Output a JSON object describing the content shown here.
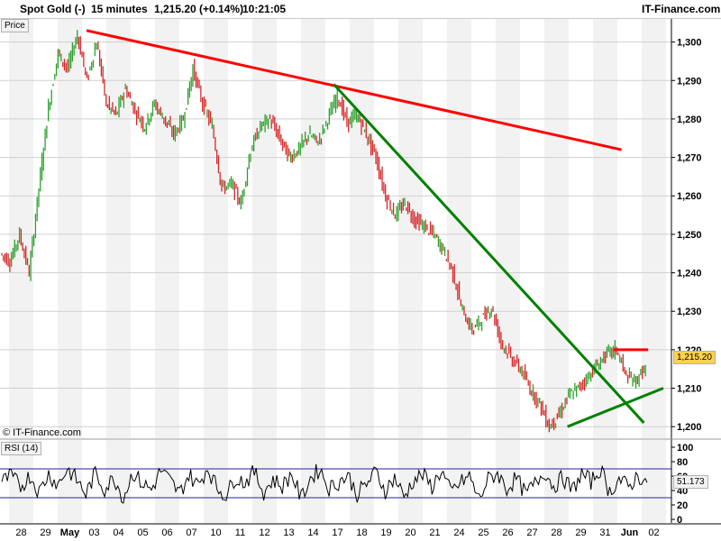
{
  "header": {
    "instrument": "Spot Gold (-)",
    "interval": "15 minutes",
    "last_change": "1,215.20 (+0.14%)",
    "time": "10:21:05",
    "brand": "IT-Finance.com"
  },
  "price_panel": {
    "label": "Price",
    "last_price_tag": "1,215.20",
    "watermark": "© IT-Finance.com"
  },
  "rsi_panel": {
    "label": "RSI (14)",
    "value_tag": "51.173"
  },
  "colors": {
    "up": "#2ca02c",
    "down": "#d62728",
    "resistance": "#ff0000",
    "trendline": "#008000",
    "rsi_line": "#000000",
    "rsi_band": "#2222aa",
    "current_tag": "#ffd24d"
  },
  "chart_data": [
    {
      "type": "line",
      "title": "Spot Gold (-)",
      "ylabel": "Price",
      "ylim": [
        1197,
        1306
      ],
      "y_ticks": [
        1200,
        1210,
        1220,
        1230,
        1240,
        1250,
        1260,
        1270,
        1280,
        1290,
        1300
      ],
      "y_tick_labels": [
        "1,200",
        "1,210",
        "1,220",
        "1,230",
        "1,240",
        "1,250",
        "1,260",
        "1,270",
        "1,280",
        "1,290",
        "1,300"
      ],
      "x_tick_labels": [
        "28",
        "29",
        "May",
        "03",
        "04",
        "05",
        "06",
        "07",
        "10",
        "11",
        "12",
        "13",
        "14",
        "17",
        "18",
        "19",
        "20",
        "21",
        "24",
        "25",
        "26",
        "27",
        "28",
        "29",
        "31",
        "Jun",
        "02"
      ],
      "bold_x_ticks": [
        "May",
        "Jun"
      ],
      "series": [
        {
          "values": [
            1245,
            1243,
            1250,
            1240,
            1262,
            1283,
            1297,
            1293,
            1302,
            1290,
            1300,
            1284,
            1281,
            1288,
            1282,
            1278,
            1284,
            1280,
            1276,
            1280,
            1293,
            1284,
            1278,
            1262,
            1263,
            1258,
            1272,
            1278,
            1280,
            1275,
            1270,
            1272,
            1276,
            1274,
            1280,
            1286,
            1279,
            1281,
            1276,
            1270,
            1260,
            1255,
            1258,
            1254,
            1252,
            1250,
            1246,
            1240,
            1230,
            1225,
            1228,
            1231,
            1222,
            1218,
            1215,
            1210,
            1206,
            1200,
            1203,
            1208,
            1210,
            1213,
            1216,
            1219,
            1220,
            1213,
            1212,
            1215.2
          ]
        }
      ],
      "lines": [
        {
          "kind": "resistance",
          "color": "red",
          "from": [
            0.12,
            1303
          ],
          "to": [
            0.862,
            1272
          ]
        },
        {
          "kind": "downtrend",
          "color": "green",
          "from": [
            0.463,
            1289
          ],
          "to": [
            0.893,
            1201
          ]
        },
        {
          "kind": "support",
          "color": "green",
          "from": [
            0.787,
            1200
          ],
          "to": [
            0.92,
            1210
          ]
        },
        {
          "kind": "recent_high",
          "color": "red",
          "from": [
            0.851,
            1220
          ],
          "to": [
            0.899,
            1220
          ]
        }
      ]
    },
    {
      "type": "line",
      "title": "RSI (14)",
      "ylim": [
        0,
        100
      ],
      "y_ticks": [
        0,
        20,
        40,
        60,
        80,
        100
      ],
      "y_tick_labels": [
        "0",
        "20",
        "40",
        "60",
        "80",
        "100"
      ],
      "bands": [
        30,
        70
      ],
      "series": [
        {
          "values": [
            52,
            60,
            45,
            61,
            38,
            63,
            48,
            70,
            55,
            35,
            64,
            42,
            58,
            30,
            65,
            50,
            41,
            68,
            53,
            36,
            62,
            47,
            72,
            44,
            33,
            59,
            51,
            66,
            38,
            55,
            46,
            63,
            29,
            57,
            70,
            43,
            52,
            61,
            35,
            49,
            66,
            40,
            58,
            31,
            54,
            62,
            45,
            68,
            37,
            50,
            60,
            28,
            55,
            64,
            42,
            57,
            35,
            49,
            67,
            46,
            58,
            40,
            63,
            52,
            70,
            38,
            56,
            44,
            61,
            51.17
          ]
        }
      ]
    }
  ]
}
